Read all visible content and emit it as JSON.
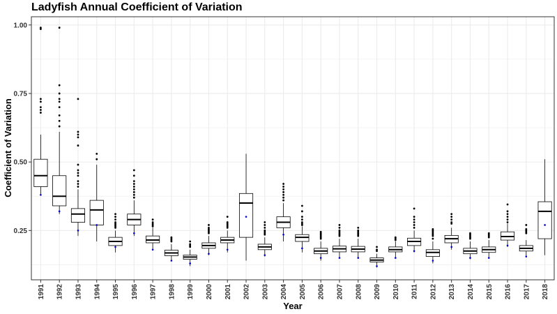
{
  "chart_data": {
    "type": "box",
    "title": "Ladyfish Annual Coefficient of Variation",
    "xlabel": "Year",
    "ylabel": "Coefficient of Variation",
    "ylim": [
      0.07,
      1.03
    ],
    "yticks": [
      "0.25",
      "0.50",
      "0.75",
      "1.00"
    ],
    "grid": true,
    "colors": {
      "box": "#000000",
      "mean": "#0000cc",
      "grid": "#ebebeb",
      "panel_border": "#333333"
    },
    "categories": [
      "1991",
      "1992",
      "1993",
      "1994",
      "1995",
      "1996",
      "1997",
      "1998",
      "1999",
      "2000",
      "2001",
      "2002",
      "2003",
      "2004",
      "2005",
      "2006",
      "2007",
      "2008",
      "2009",
      "2010",
      "2011",
      "2012",
      "2013",
      "2014",
      "2015",
      "2016",
      "2017",
      "2018"
    ],
    "boxes": [
      {
        "q1": 0.41,
        "median": 0.45,
        "q3": 0.51,
        "wlo": 0.38,
        "whi": 0.6,
        "mean": 0.38,
        "outliers": [
          0.99,
          0.985,
          0.73,
          0.72,
          0.7,
          0.69,
          0.68
        ]
      },
      {
        "q1": 0.34,
        "median": 0.375,
        "q3": 0.45,
        "wlo": 0.31,
        "whi": 0.61,
        "mean": 0.32,
        "outliers": [
          0.99,
          0.78,
          0.75,
          0.73,
          0.72,
          0.7,
          0.67,
          0.65,
          0.63
        ]
      },
      {
        "q1": 0.28,
        "median": 0.31,
        "q3": 0.33,
        "wlo": 0.23,
        "whi": 0.4,
        "mean": 0.25,
        "outliers": [
          0.73,
          0.61,
          0.6,
          0.59,
          0.56,
          0.49,
          0.47,
          0.46,
          0.45,
          0.43,
          0.42,
          0.41
        ]
      },
      {
        "q1": 0.27,
        "median": 0.325,
        "q3": 0.36,
        "wlo": 0.21,
        "whi": 0.49,
        "mean": 0.27,
        "outliers": [
          0.53,
          0.51
        ]
      },
      {
        "q1": 0.195,
        "median": 0.21,
        "q3": 0.225,
        "wlo": 0.17,
        "whi": 0.25,
        "mean": 0.19,
        "outliers": [
          0.31,
          0.3,
          0.29,
          0.28,
          0.275,
          0.27,
          0.265,
          0.26
        ]
      },
      {
        "q1": 0.27,
        "median": 0.29,
        "q3": 0.31,
        "wlo": 0.23,
        "whi": 0.36,
        "mean": 0.24,
        "outliers": [
          0.47,
          0.45,
          0.43,
          0.42,
          0.41,
          0.4,
          0.39,
          0.38,
          0.37
        ]
      },
      {
        "q1": 0.205,
        "median": 0.215,
        "q3": 0.23,
        "wlo": 0.18,
        "whi": 0.26,
        "mean": 0.18,
        "outliers": [
          0.29,
          0.28,
          0.275,
          0.27,
          0.265
        ]
      },
      {
        "q1": 0.158,
        "median": 0.168,
        "q3": 0.178,
        "wlo": 0.14,
        "whi": 0.2,
        "mean": 0.14,
        "outliers": [
          0.225,
          0.22,
          0.215,
          0.21
        ]
      },
      {
        "q1": 0.145,
        "median": 0.153,
        "q3": 0.16,
        "wlo": 0.12,
        "whi": 0.18,
        "mean": 0.13,
        "outliers": [
          0.21,
          0.2,
          0.195,
          0.19
        ]
      },
      {
        "q1": 0.185,
        "median": 0.195,
        "q3": 0.205,
        "wlo": 0.16,
        "whi": 0.23,
        "mean": 0.165,
        "outliers": [
          0.27,
          0.26,
          0.255,
          0.25,
          0.245,
          0.24
        ]
      },
      {
        "q1": 0.205,
        "median": 0.215,
        "q3": 0.225,
        "wlo": 0.17,
        "whi": 0.25,
        "mean": 0.18,
        "outliers": [
          0.3,
          0.28,
          0.275,
          0.27,
          0.265,
          0.26
        ]
      },
      {
        "q1": 0.225,
        "median": 0.35,
        "q3": 0.385,
        "wlo": 0.14,
        "whi": 0.53,
        "mean": 0.3,
        "outliers": []
      },
      {
        "q1": 0.18,
        "median": 0.19,
        "q3": 0.2,
        "wlo": 0.155,
        "whi": 0.225,
        "mean": 0.16,
        "outliers": [
          0.28,
          0.27,
          0.26,
          0.25,
          0.245,
          0.24,
          0.235
        ]
      },
      {
        "q1": 0.26,
        "median": 0.28,
        "q3": 0.3,
        "wlo": 0.21,
        "whi": 0.35,
        "mean": 0.235,
        "outliers": [
          0.42,
          0.41,
          0.4,
          0.39,
          0.38,
          0.37,
          0.36
        ]
      },
      {
        "q1": 0.21,
        "median": 0.225,
        "q3": 0.235,
        "wlo": 0.17,
        "whi": 0.265,
        "mean": 0.185,
        "outliers": [
          0.34,
          0.32,
          0.3,
          0.29,
          0.28,
          0.275,
          0.27
        ]
      },
      {
        "q1": 0.165,
        "median": 0.175,
        "q3": 0.185,
        "wlo": 0.14,
        "whi": 0.21,
        "mean": 0.15,
        "outliers": [
          0.245,
          0.24,
          0.235,
          0.23,
          0.225,
          0.22
        ]
      },
      {
        "q1": 0.172,
        "median": 0.183,
        "q3": 0.193,
        "wlo": 0.15,
        "whi": 0.22,
        "mean": 0.15,
        "outliers": [
          0.27,
          0.26,
          0.25,
          0.245,
          0.24,
          0.235,
          0.23
        ]
      },
      {
        "q1": 0.172,
        "median": 0.182,
        "q3": 0.192,
        "wlo": 0.15,
        "whi": 0.22,
        "mean": 0.15,
        "outliers": [
          0.26,
          0.25,
          0.245,
          0.24,
          0.235,
          0.23
        ]
      },
      {
        "q1": 0.135,
        "median": 0.142,
        "q3": 0.15,
        "wlo": 0.115,
        "whi": 0.165,
        "mean": 0.12,
        "outliers": [
          0.19,
          0.18,
          0.175
        ]
      },
      {
        "q1": 0.172,
        "median": 0.18,
        "q3": 0.19,
        "wlo": 0.15,
        "whi": 0.21,
        "mean": 0.15,
        "outliers": [
          0.225,
          0.22,
          0.215
        ]
      },
      {
        "q1": 0.195,
        "median": 0.21,
        "q3": 0.222,
        "wlo": 0.17,
        "whi": 0.25,
        "mean": 0.175,
        "outliers": [
          0.33,
          0.3,
          0.29,
          0.28,
          0.27,
          0.26
        ]
      },
      {
        "q1": 0.155,
        "median": 0.17,
        "q3": 0.18,
        "wlo": 0.13,
        "whi": 0.21,
        "mean": 0.14,
        "outliers": [
          0.255,
          0.25,
          0.245,
          0.24,
          0.235,
          0.23,
          0.22
        ]
      },
      {
        "q1": 0.205,
        "median": 0.22,
        "q3": 0.232,
        "wlo": 0.18,
        "whi": 0.26,
        "mean": 0.19,
        "outliers": [
          0.31,
          0.3,
          0.29,
          0.28,
          0.275
        ]
      },
      {
        "q1": 0.165,
        "median": 0.175,
        "q3": 0.185,
        "wlo": 0.145,
        "whi": 0.21,
        "mean": 0.15,
        "outliers": [
          0.24,
          0.235,
          0.23,
          0.225,
          0.22
        ]
      },
      {
        "q1": 0.17,
        "median": 0.18,
        "q3": 0.19,
        "wlo": 0.15,
        "whi": 0.215,
        "mean": 0.15,
        "outliers": [
          0.24,
          0.235,
          0.23,
          0.225
        ]
      },
      {
        "q1": 0.215,
        "median": 0.228,
        "q3": 0.245,
        "wlo": 0.19,
        "whi": 0.275,
        "mean": 0.195,
        "outliers": [
          0.345,
          0.32,
          0.31,
          0.3,
          0.29,
          0.28
        ]
      },
      {
        "q1": 0.175,
        "median": 0.185,
        "q3": 0.195,
        "wlo": 0.155,
        "whi": 0.215,
        "mean": 0.155,
        "outliers": [
          0.27,
          0.255,
          0.25,
          0.245,
          0.24
        ]
      },
      {
        "q1": 0.22,
        "median": 0.32,
        "q3": 0.355,
        "wlo": 0.16,
        "whi": 0.51,
        "mean": 0.27,
        "outliers": []
      }
    ]
  }
}
